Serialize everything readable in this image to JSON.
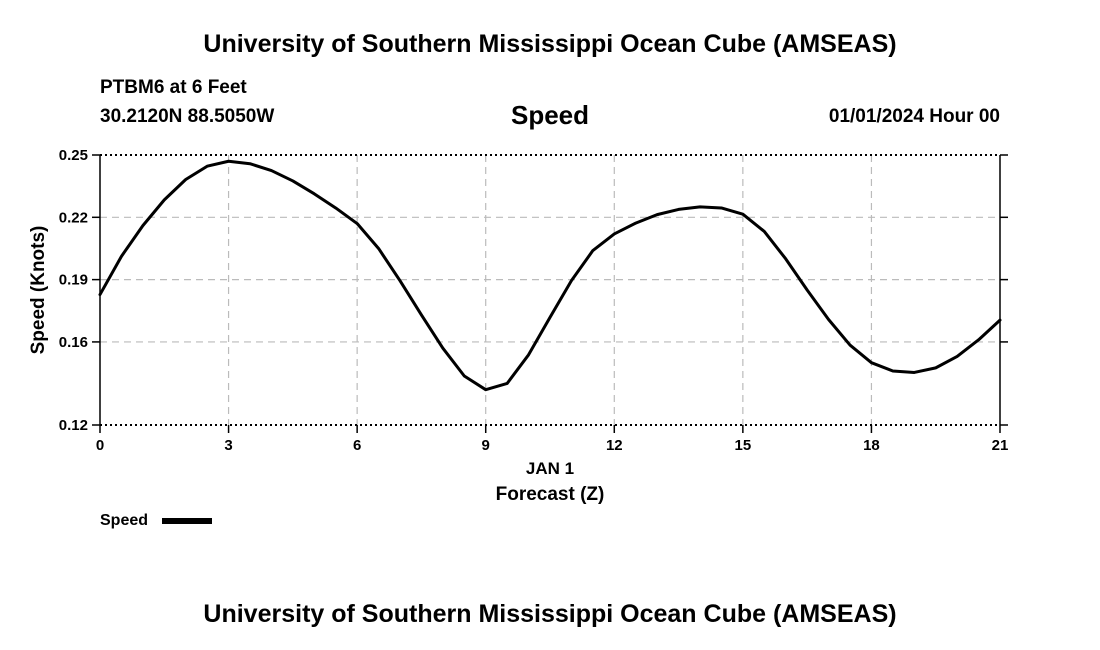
{
  "header": {
    "title": "University of Southern Mississippi Ocean Cube (AMSEAS)",
    "station": "PTBM6 at 6 Feet",
    "coordinates": "30.2120N  88.5050W",
    "variable": "Speed",
    "datetime": "01/01/2024 Hour 00"
  },
  "footer": {
    "title": "University of Southern Mississippi Ocean Cube (AMSEAS)"
  },
  "colors": {
    "line": "#000000",
    "grid": "#bbbbbb"
  },
  "chart_data": {
    "type": "line",
    "title": "Speed",
    "xlabel": "Forecast (Z)",
    "xlabel_date": "JAN 1",
    "ylabel": "Speed (Knots)",
    "xlim": [
      0,
      21
    ],
    "ylim": [
      0.12,
      0.25
    ],
    "xticks": [
      0,
      3,
      6,
      9,
      12,
      15,
      18,
      21
    ],
    "xtick_labels": [
      "0",
      "3",
      "6",
      "9",
      "12",
      "15",
      "18",
      "21"
    ],
    "yticks": [
      0.12,
      0.16,
      0.19,
      0.22,
      0.25
    ],
    "ytick_labels": [
      "0.12",
      "0.16",
      "0.19",
      "0.22",
      "0.25"
    ],
    "grid": true,
    "legend": {
      "position": "bottom-left",
      "entries": [
        "Speed"
      ]
    },
    "series": [
      {
        "name": "Speed",
        "x": [
          0,
          0.5,
          1,
          1.5,
          2,
          2.5,
          3,
          3.5,
          4,
          4.5,
          5,
          5.5,
          6,
          6.5,
          7,
          7.5,
          8,
          8.5,
          9,
          9.5,
          10,
          10.5,
          11,
          11.5,
          12,
          12.5,
          13,
          13.5,
          14,
          14.5,
          15,
          15.5,
          16,
          16.5,
          17,
          17.5,
          18,
          18.5,
          19,
          19.5,
          20,
          20.5,
          21
        ],
        "y": [
          0.1828,
          0.2012,
          0.216,
          0.2284,
          0.2382,
          0.2446,
          0.247,
          0.2458,
          0.2425,
          0.2375,
          0.2313,
          0.2245,
          0.217,
          0.205,
          0.1895,
          0.173,
          0.157,
          0.1436,
          0.137,
          0.14,
          0.1538,
          0.1718,
          0.1895,
          0.204,
          0.212,
          0.2172,
          0.2213,
          0.2238,
          0.225,
          0.2245,
          0.2215,
          0.2132,
          0.2,
          0.185,
          0.1708,
          0.1585,
          0.15,
          0.146,
          0.1453,
          0.1475,
          0.153,
          0.161,
          0.1705
        ]
      }
    ]
  }
}
